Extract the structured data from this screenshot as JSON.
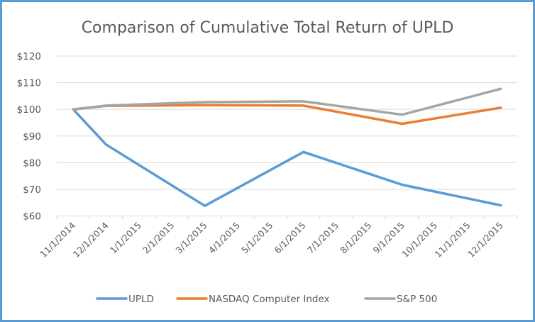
{
  "chart_data": {
    "type": "line",
    "title": "Comparison of Cumulative Total Return of UPLD",
    "xlabel": "",
    "ylabel": "",
    "ylim": [
      60,
      120
    ],
    "yticks": [
      60,
      70,
      80,
      90,
      100,
      110,
      120
    ],
    "ytick_labels": [
      "$60",
      "$70",
      "$80",
      "$90",
      "$100",
      "$110",
      "$120"
    ],
    "grid": true,
    "legend_position": "bottom",
    "categories": [
      "11/1/2014",
      "12/1/2014",
      "1/1/2015",
      "2/1/2015",
      "3/1/2015",
      "4/1/2015",
      "5/1/2015",
      "6/1/2015",
      "7/1/2015",
      "8/1/2015",
      "9/1/2015",
      "10/1/2015",
      "11/1/2015",
      "12/1/2015"
    ],
    "series": [
      {
        "name": "UPLD",
        "color": "#5B9BD5",
        "values": [
          100,
          86.8,
          null,
          null,
          63.8,
          null,
          null,
          84.0,
          null,
          null,
          71.7,
          null,
          null,
          64.0
        ]
      },
      {
        "name": "NASDAQ Computer Index",
        "color": "#ED7D31",
        "values": [
          100,
          101.3,
          null,
          null,
          101.6,
          null,
          null,
          101.4,
          null,
          null,
          94.6,
          null,
          null,
          100.6
        ]
      },
      {
        "name": "S&P 500",
        "color": "#A5A5A5",
        "values": [
          100,
          101.4,
          null,
          null,
          102.7,
          null,
          null,
          103.0,
          null,
          null,
          98.0,
          null,
          null,
          107.7
        ]
      }
    ]
  }
}
